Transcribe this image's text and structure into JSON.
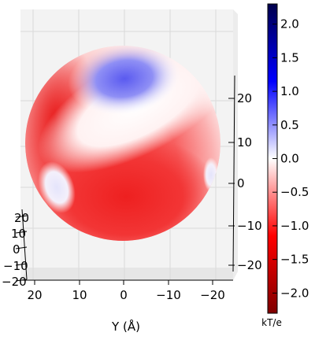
{
  "chart_data": {
    "type": "heatmap",
    "title": "",
    "xlabel": "Y (Å)",
    "bottom_axis_ticks": [
      "20",
      "10",
      "0",
      "−10",
      "−20"
    ],
    "left_depth_ticks": [
      "20",
      "10",
      "0",
      "−10",
      "−20"
    ],
    "right_axis_ticks": [
      "20",
      "10",
      "0",
      "−10",
      "−20"
    ],
    "colorbar": {
      "label": "kT/e",
      "range": [
        -2.3,
        2.3
      ],
      "ticks": [
        2.0,
        1.5,
        1.0,
        0.5,
        0.0,
        -0.5,
        -1.0,
        -1.5,
        -2.0
      ],
      "tick_labels": [
        "2.0",
        "1.5",
        "1.0",
        "0.5",
        "0.0",
        "−0.5",
        "−1.0",
        "−1.5",
        "−2.0"
      ],
      "colormap": "seismic_r",
      "colors": {
        "top": "#00004c",
        "middle": "#ffffff",
        "bottom": "#7f0000",
        "positive": "#0000ff",
        "negative": "#ff0000"
      }
    },
    "surface": {
      "shape": "sphere",
      "regions": [
        {
          "description": "positive potential lobe",
          "value": 1.0
        },
        {
          "description": "strong negative band",
          "value": -1.5
        },
        {
          "description": "weak positive patch left",
          "value": 0.3
        },
        {
          "description": "weak positive patch right",
          "value": 0.3
        }
      ]
    },
    "grid": true
  }
}
